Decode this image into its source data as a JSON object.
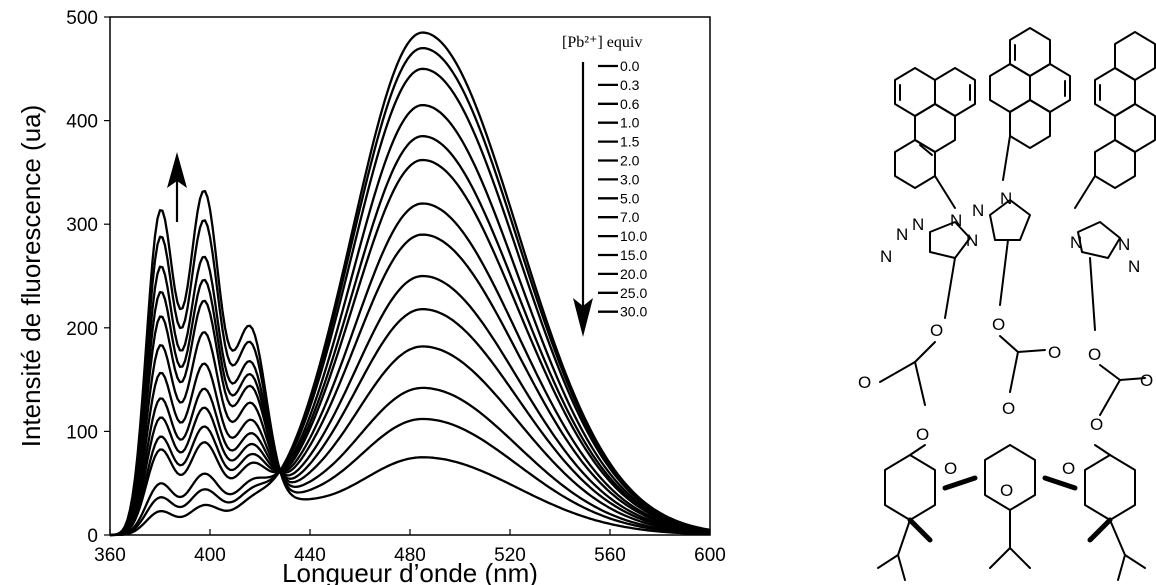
{
  "chart_data": {
    "type": "line",
    "xlabel": "Longueur d’onde (nm)",
    "ylabel": "Intensité de fluorescence (ua)",
    "xlim": [
      360,
      600
    ],
    "ylim": [
      0,
      500
    ],
    "x_ticks": [
      360,
      400,
      440,
      480,
      520,
      560,
      600
    ],
    "y_ticks": [
      0,
      100,
      200,
      300,
      400,
      500
    ],
    "grid": false,
    "legend": {
      "title": "[Pb²⁺] equiv",
      "placement": "top-right",
      "entries": [
        "0.0",
        "0.3",
        "0.6",
        "1.0",
        "1.5",
        "2.0",
        "3.0",
        "5.0",
        "7.0",
        "10.0",
        "15.0",
        "20.0",
        "25.0",
        "30.0"
      ]
    },
    "annotations": [
      {
        "text": "↑",
        "meaning": "monomer band increases (~380–400 nm)"
      },
      {
        "text": "↓",
        "meaning": "excimer band decreases (~485 nm)"
      }
    ],
    "isosbestic_point": {
      "x": 428,
      "y": 62
    },
    "series": [
      {
        "name": "0.0",
        "monomer_peaks": {
          "x": [
            380,
            397
          ],
          "y": [
            22,
            25
          ]
        },
        "excimer_peak": {
          "x": 485,
          "y": 485
        }
      },
      {
        "name": "0.3",
        "monomer_peaks": {
          "x": [
            380,
            397
          ],
          "y": [
            35,
            40
          ]
        },
        "excimer_peak": {
          "x": 485,
          "y": 470
        }
      },
      {
        "name": "0.6",
        "monomer_peaks": {
          "x": [
            380,
            397
          ],
          "y": [
            48,
            55
          ]
        },
        "excimer_peak": {
          "x": 485,
          "y": 450
        }
      },
      {
        "name": "1.0",
        "monomer_peaks": {
          "x": [
            380,
            397
          ],
          "y": [
            80,
            85
          ]
        },
        "excimer_peak": {
          "x": 485,
          "y": 415
        }
      },
      {
        "name": "1.5",
        "monomer_peaks": {
          "x": [
            380,
            397
          ],
          "y": [
            92,
            100
          ]
        },
        "excimer_peak": {
          "x": 485,
          "y": 385
        }
      },
      {
        "name": "2.0",
        "monomer_peaks": {
          "x": [
            380,
            397
          ],
          "y": [
            110,
            118
          ]
        },
        "excimer_peak": {
          "x": 485,
          "y": 362
        }
      },
      {
        "name": "3.0",
        "monomer_peaks": {
          "x": [
            380,
            397
          ],
          "y": [
            128,
            136
          ]
        },
        "excimer_peak": {
          "x": 485,
          "y": 320
        }
      },
      {
        "name": "5.0",
        "monomer_peaks": {
          "x": [
            380,
            397
          ],
          "y": [
            152,
            160
          ]
        },
        "excimer_peak": {
          "x": 485,
          "y": 290
        }
      },
      {
        "name": "7.0",
        "monomer_peaks": {
          "x": [
            380,
            397
          ],
          "y": [
            178,
            190
          ]
        },
        "excimer_peak": {
          "x": 485,
          "y": 250
        }
      },
      {
        "name": "10.0",
        "monomer_peaks": {
          "x": [
            380,
            397
          ],
          "y": [
            205,
            220
          ]
        },
        "excimer_peak": {
          "x": 485,
          "y": 218
        }
      },
      {
        "name": "15.0",
        "monomer_peaks": {
          "x": [
            380,
            397
          ],
          "y": [
            228,
            240
          ]
        },
        "excimer_peak": {
          "x": 485,
          "y": 182
        }
      },
      {
        "name": "20.0",
        "monomer_peaks": {
          "x": [
            380,
            397
          ],
          "y": [
            252,
            262
          ]
        },
        "excimer_peak": {
          "x": 485,
          "y": 142
        }
      },
      {
        "name": "25.0",
        "monomer_peaks": {
          "x": [
            380,
            397
          ],
          "y": [
            280,
            297
          ]
        },
        "excimer_peak": {
          "x": 485,
          "y": 112
        }
      },
      {
        "name": "30.0",
        "monomer_peaks": {
          "x": [
            380,
            397
          ],
          "y": [
            305,
            325
          ]
        },
        "excimer_peak": {
          "x": 485,
          "y": 75
        }
      }
    ]
  }
}
